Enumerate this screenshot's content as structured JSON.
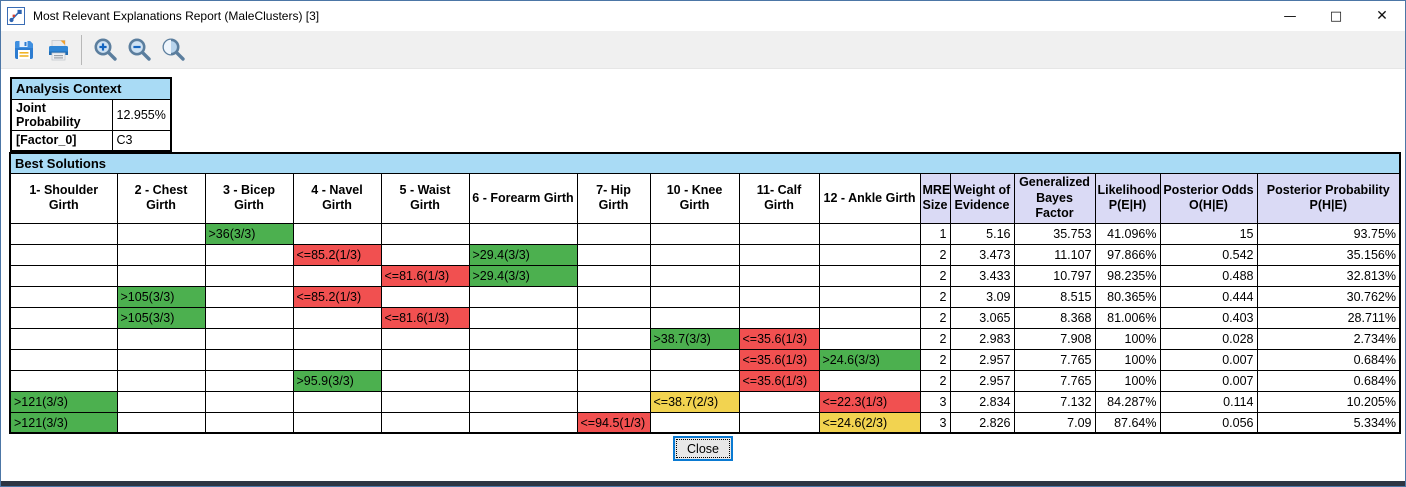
{
  "window": {
    "title": "Most Relevant Explanations Report (MaleClusters) [3]",
    "minimize_glyph": "—",
    "maximize_glyph": "□",
    "close_glyph": "✕"
  },
  "toolbar": {
    "icons": [
      "save-icon",
      "print-icon",
      "zoom-in-icon",
      "zoom-out-icon",
      "zoom-reset-icon"
    ]
  },
  "analysis_context": {
    "title": "Analysis Context",
    "rows": [
      {
        "label": "Joint Probability",
        "value": "12.955%"
      },
      {
        "label": "[Factor_0]",
        "value": "C3"
      }
    ]
  },
  "best_solutions": {
    "title": "Best Solutions",
    "columns": [
      "1- Shoulder Girth",
      "2 - Chest Girth",
      "3 - Bicep Girth",
      "4 - Navel Girth",
      "5 - Waist Girth",
      "6 - Forearm Girth",
      "7- Hip Girth",
      "10 - Knee Girth",
      "11- Calf Girth",
      "12 - Ankle Girth",
      "MRE Size",
      "Weight of Evidence",
      "Generalized Bayes Factor",
      "Likelihood P(E|H)",
      "Posterior Odds O(H|E)",
      "Posterior Probability P(H|E)"
    ],
    "category_column_count": 10,
    "rows": [
      {
        "cells": [
          "",
          "",
          {
            "t": ">36(3/3)",
            "c": "green"
          },
          "",
          "",
          "",
          "",
          "",
          "",
          "",
          "1",
          "5.16",
          "35.753",
          "41.096%",
          "15",
          "93.75%"
        ]
      },
      {
        "cells": [
          "",
          "",
          "",
          {
            "t": "<=85.2(1/3)",
            "c": "red"
          },
          "",
          {
            "t": ">29.4(3/3)",
            "c": "green"
          },
          "",
          "",
          "",
          "",
          "2",
          "3.473",
          "11.107",
          "97.866%",
          "0.542",
          "35.156%"
        ]
      },
      {
        "cells": [
          "",
          "",
          "",
          "",
          {
            "t": "<=81.6(1/3)",
            "c": "red"
          },
          {
            "t": ">29.4(3/3)",
            "c": "green"
          },
          "",
          "",
          "",
          "",
          "2",
          "3.433",
          "10.797",
          "98.235%",
          "0.488",
          "32.813%"
        ]
      },
      {
        "cells": [
          "",
          {
            "t": ">105(3/3)",
            "c": "green"
          },
          "",
          {
            "t": "<=85.2(1/3)",
            "c": "red"
          },
          "",
          "",
          "",
          "",
          "",
          "",
          "2",
          "3.09",
          "8.515",
          "80.365%",
          "0.444",
          "30.762%"
        ]
      },
      {
        "cells": [
          "",
          {
            "t": ">105(3/3)",
            "c": "green"
          },
          "",
          "",
          {
            "t": "<=81.6(1/3)",
            "c": "red"
          },
          "",
          "",
          "",
          "",
          "",
          "2",
          "3.065",
          "8.368",
          "81.006%",
          "0.403",
          "28.711%"
        ]
      },
      {
        "cells": [
          "",
          "",
          "",
          "",
          "",
          "",
          "",
          {
            "t": ">38.7(3/3)",
            "c": "green"
          },
          {
            "t": "<=35.6(1/3)",
            "c": "red"
          },
          "",
          "2",
          "2.983",
          "7.908",
          "100%",
          "0.028",
          "2.734%"
        ]
      },
      {
        "cells": [
          "",
          "",
          "",
          "",
          "",
          "",
          "",
          "",
          {
            "t": "<=35.6(1/3)",
            "c": "red"
          },
          {
            "t": ">24.6(3/3)",
            "c": "green"
          },
          "2",
          "2.957",
          "7.765",
          "100%",
          "0.007",
          "0.684%"
        ]
      },
      {
        "cells": [
          "",
          "",
          "",
          {
            "t": ">95.9(3/3)",
            "c": "green"
          },
          "",
          "",
          "",
          "",
          {
            "t": "<=35.6(1/3)",
            "c": "red"
          },
          "",
          "2",
          "2.957",
          "7.765",
          "100%",
          "0.007",
          "0.684%"
        ]
      },
      {
        "cells": [
          {
            "t": ">121(3/3)",
            "c": "green"
          },
          "",
          "",
          "",
          "",
          "",
          "",
          {
            "t": "<=38.7(2/3)",
            "c": "yellow"
          },
          "",
          {
            "t": "<=22.3(1/3)",
            "c": "red"
          },
          "3",
          "2.834",
          "7.132",
          "84.287%",
          "0.114",
          "10.205%"
        ]
      },
      {
        "cells": [
          {
            "t": ">121(3/3)",
            "c": "green"
          },
          "",
          "",
          "",
          "",
          "",
          {
            "t": "<=94.5(1/3)",
            "c": "red"
          },
          "",
          "",
          {
            "t": "<=24.6(2/3)",
            "c": "yellow"
          },
          "3",
          "2.826",
          "7.09",
          "87.64%",
          "0.056",
          "5.334%"
        ]
      }
    ]
  },
  "footer": {
    "close_label": "Close"
  },
  "colors": {
    "green": "#4CB04F",
    "red": "#F15050",
    "yellow": "#F2D350",
    "header_blue": "#A9DBF5",
    "header_lavender": "#DADAF5"
  }
}
